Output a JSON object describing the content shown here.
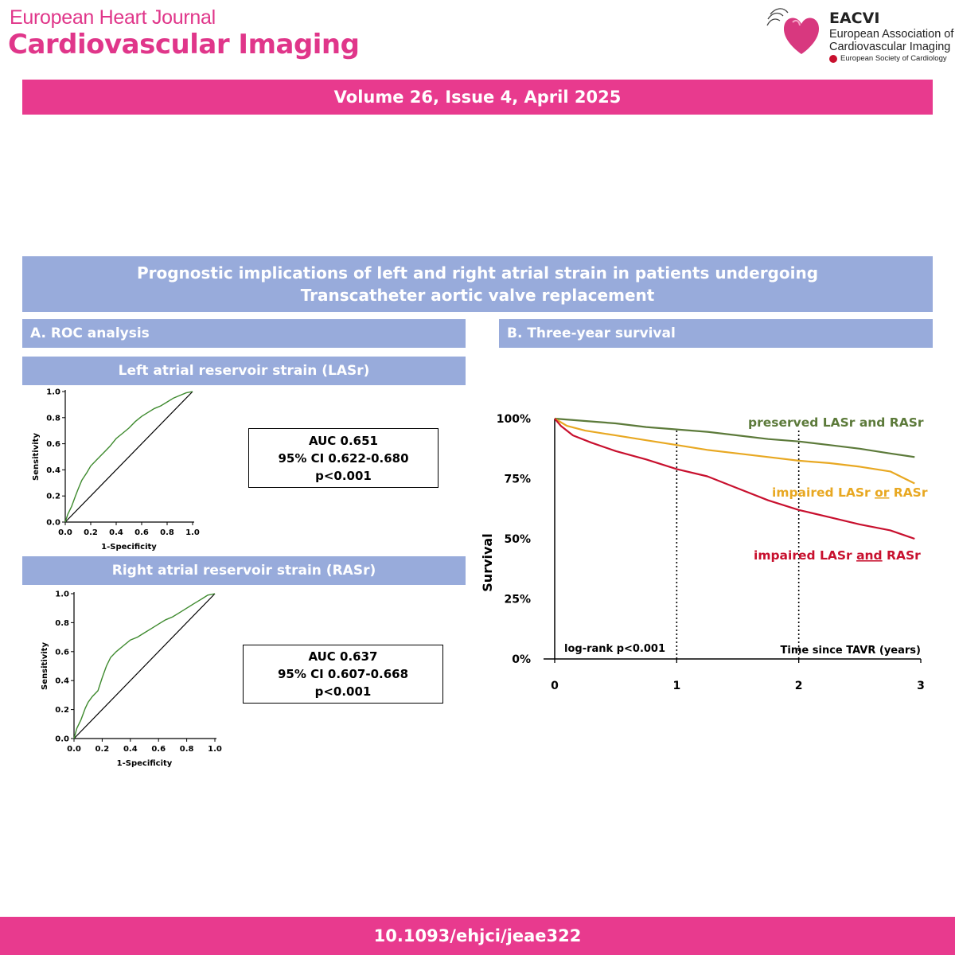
{
  "header": {
    "journal_line1": "European Heart Journal",
    "journal_line2": "Cardiovascular Imaging",
    "logo": {
      "abbr": "EACVI",
      "name_line1": "European Association of",
      "name_line2": "Cardiovascular Imaging",
      "society": "European Society of Cardiology"
    }
  },
  "volume": "Volume 26, Issue 4, April 2025",
  "title": {
    "line1": "Prognostic implications of left and right atrial strain in patients undergoing",
    "line2": "Transcatheter aortic valve replacement"
  },
  "panel_a": {
    "heading": "A. ROC analysis",
    "lasr_heading": "Left atrial reservoir strain (LASr)",
    "rasr_heading": "Right atrial reservoir strain (RASr)",
    "lasr_stats": {
      "auc": "AUC 0.651",
      "ci": "95% CI 0.622-0.680",
      "p": "p<0.001"
    },
    "rasr_stats": {
      "auc": "AUC 0.637",
      "ci": "95% CI 0.607-0.668",
      "p": "p<0.001"
    }
  },
  "panel_b": {
    "heading": "B. Three-year survival",
    "legend": {
      "preserved": "preserved LASr and RASr",
      "or_prefix": "impaired LASr ",
      "or_word": "or",
      "or_suffix": " RASr",
      "and_prefix": "impaired LASr ",
      "and_word": "and",
      "and_suffix": " RASr"
    },
    "logrank": "log-rank p<0.001"
  },
  "doi": "10.1093/ehjci/jeae322",
  "chart_data": [
    {
      "type": "line",
      "title": "Left atrial reservoir strain (LASr)",
      "xlabel": "1-Specificity",
      "ylabel": "Sensitivity",
      "xlim": [
        0,
        1
      ],
      "ylim": [
        0,
        1
      ],
      "xticks": [
        "0.0",
        "0.2",
        "0.4",
        "0.6",
        "0.8",
        "1.0"
      ],
      "yticks": [
        "0.0",
        "0.2",
        "0.4",
        "0.6",
        "0.8",
        "1.0"
      ],
      "series": [
        {
          "color": "#3e8a2e",
          "x": [
            0,
            0.02,
            0.05,
            0.08,
            0.1,
            0.13,
            0.17,
            0.2,
            0.25,
            0.3,
            0.35,
            0.4,
            0.45,
            0.5,
            0.55,
            0.6,
            0.65,
            0.7,
            0.75,
            0.8,
            0.85,
            0.9,
            0.95,
            1.0
          ],
          "y": [
            0,
            0.06,
            0.12,
            0.2,
            0.25,
            0.32,
            0.38,
            0.43,
            0.48,
            0.53,
            0.58,
            0.64,
            0.68,
            0.72,
            0.77,
            0.81,
            0.84,
            0.87,
            0.89,
            0.92,
            0.95,
            0.97,
            0.99,
            1.0
          ]
        }
      ],
      "reference_line": true
    },
    {
      "type": "line",
      "title": "Right atrial reservoir strain (RASr)",
      "xlabel": "1-Specificity",
      "ylabel": "Sensitivity",
      "xlim": [
        0,
        1
      ],
      "ylim": [
        0,
        1
      ],
      "xticks": [
        "0.0",
        "0.2",
        "0.4",
        "0.6",
        "0.8",
        "1.0"
      ],
      "yticks": [
        "0.0",
        "0.2",
        "0.4",
        "0.6",
        "0.8",
        "1.0"
      ],
      "series": [
        {
          "color": "#3e8a2e",
          "x": [
            0,
            0.02,
            0.05,
            0.08,
            0.1,
            0.13,
            0.17,
            0.2,
            0.23,
            0.26,
            0.3,
            0.35,
            0.4,
            0.45,
            0.5,
            0.55,
            0.6,
            0.65,
            0.7,
            0.75,
            0.8,
            0.85,
            0.9,
            0.95,
            1.0
          ],
          "y": [
            0,
            0.07,
            0.13,
            0.21,
            0.25,
            0.29,
            0.33,
            0.42,
            0.5,
            0.56,
            0.6,
            0.64,
            0.68,
            0.7,
            0.73,
            0.76,
            0.79,
            0.82,
            0.84,
            0.87,
            0.9,
            0.93,
            0.96,
            0.99,
            1.0
          ]
        }
      ],
      "reference_line": true
    },
    {
      "type": "line",
      "title": "B. Three-year survival",
      "xlabel": "Time since TAVR (years)",
      "ylabel": "Survival",
      "xlim": [
        0,
        3
      ],
      "ylim": [
        0,
        100
      ],
      "xticks": [
        "0",
        "1",
        "2",
        "3"
      ],
      "yticks": [
        "0%",
        "25%",
        "50%",
        "75%",
        "100%"
      ],
      "vlines": [
        1,
        2
      ],
      "series": [
        {
          "name": "preserved LASr and RASr",
          "color": "#5c7a3a",
          "x": [
            0,
            0.25,
            0.5,
            0.75,
            1.0,
            1.25,
            1.5,
            1.75,
            2.0,
            2.25,
            2.5,
            2.75,
            2.95
          ],
          "y": [
            100,
            99,
            98,
            96.5,
            95.5,
            94.5,
            93,
            91.5,
            90.5,
            89,
            87.5,
            85.5,
            84
          ]
        },
        {
          "name": "impaired LASr or RASr",
          "color": "#e8a822",
          "x": [
            0,
            0.1,
            0.25,
            0.5,
            0.75,
            1.0,
            1.25,
            1.5,
            1.75,
            2.0,
            2.25,
            2.5,
            2.75,
            2.95
          ],
          "y": [
            100,
            97,
            95,
            93,
            91,
            89,
            87,
            85.5,
            84,
            82.5,
            81.5,
            80,
            78,
            73
          ]
        },
        {
          "name": "impaired LASr and RASr",
          "color": "#c8102e",
          "x": [
            0,
            0.05,
            0.15,
            0.3,
            0.5,
            0.75,
            1.0,
            1.25,
            1.5,
            1.75,
            2.0,
            2.25,
            2.5,
            2.75,
            2.95
          ],
          "y": [
            100,
            97,
            93,
            90,
            86.5,
            83,
            79,
            76,
            71,
            66,
            62,
            59,
            56,
            53.5,
            50
          ]
        }
      ]
    }
  ]
}
